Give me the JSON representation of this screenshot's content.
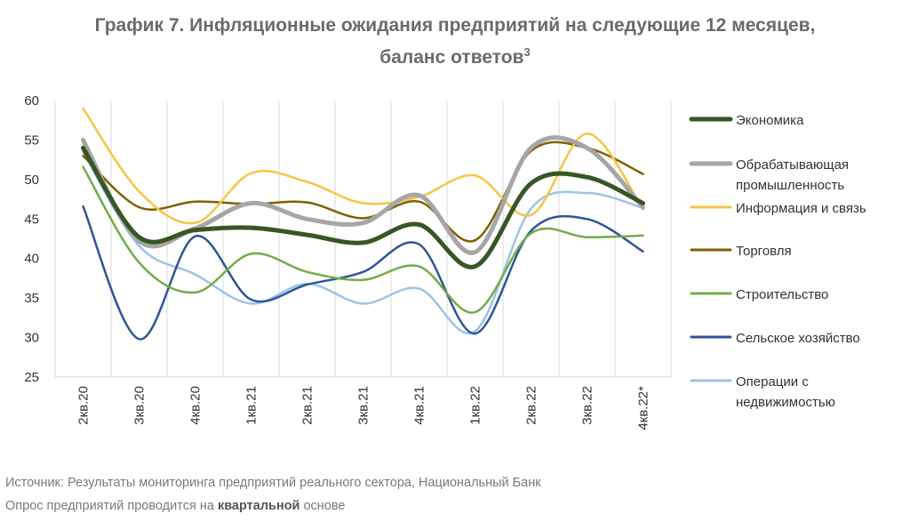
{
  "title": {
    "line1": "График 7.  Инфляционные ожидания предприятий на следующие 12 месяцев,",
    "line2": "баланс ответов",
    "footnote": "3"
  },
  "source": {
    "line1": "Источник: Результаты мониторинга предприятий реального сектора, Национальный Банк",
    "line2_prefix": "Опрос предприятий проводится на ",
    "line2_bold": "квартальной",
    "line2_suffix": " основе"
  },
  "chart_data": {
    "type": "line",
    "title": "График 7.  Инфляционные ожидания предприятий на следующие 12 месяцев, баланс ответов",
    "xlabel": "",
    "ylabel": "",
    "categories": [
      "2кв.20",
      "3кв.20",
      "4кв.20",
      "1кв.21",
      "2кв.21",
      "3кв.21",
      "4кв.21",
      "1кв.22",
      "2кв.22",
      "3кв.22",
      "4кв.22*"
    ],
    "ylim": [
      25,
      60
    ],
    "yticks": [
      25,
      30,
      35,
      40,
      45,
      50,
      55,
      60
    ],
    "grid": "vertical",
    "legend": "right",
    "series": [
      {
        "name": "Экономика",
        "legend_lines": [
          "Экономика"
        ],
        "color": "#375623",
        "width": 5,
        "values": [
          54,
          42.7,
          43.6,
          43.9,
          43.0,
          42.0,
          44.3,
          39.0,
          49.5,
          50.3,
          47.0
        ]
      },
      {
        "name": "Обрабатывающая промышленность",
        "legend_lines": [
          "Обрабатывающая",
          "промышленность"
        ],
        "color": "#a6a6a6",
        "width": 5,
        "values": [
          55,
          42.2,
          43.8,
          47.0,
          45.0,
          44.5,
          48.0,
          40.8,
          54.0,
          54.0,
          46.5
        ]
      },
      {
        "name": "Информация и связь",
        "legend_lines": [
          "Информация и связь"
        ],
        "color": "#f6c542",
        "width": 2.5,
        "values": [
          59,
          48.5,
          44.5,
          50.8,
          49.7,
          47.0,
          47.8,
          50.5,
          45.5,
          55.8,
          46.2
        ]
      },
      {
        "name": "Торговля",
        "legend_lines": [
          "Торговля"
        ],
        "color": "#7f6000",
        "width": 2.5,
        "values": [
          53,
          46.5,
          47.2,
          46.9,
          47.1,
          45.1,
          47.2,
          42.3,
          53.6,
          54.0,
          50.7
        ]
      },
      {
        "name": "Строительство",
        "legend_lines": [
          "Строительство"
        ],
        "color": "#70ad47",
        "width": 2.5,
        "values": [
          51.6,
          39.5,
          35.7,
          40.6,
          38.3,
          37.3,
          39.0,
          33.2,
          43.2,
          42.7,
          42.9
        ]
      },
      {
        "name": "Сельское хозяйство",
        "legend_lines": [
          "Сельское хозяйство"
        ],
        "color": "#2f5597",
        "width": 2.5,
        "values": [
          46.6,
          29.8,
          42.8,
          34.8,
          36.7,
          38.3,
          41.8,
          30.5,
          43.5,
          45.0,
          40.9
        ]
      },
      {
        "name": "Операции с недвижимостью",
        "legend_lines": [
          "Операции с",
          "недвижимостью"
        ],
        "color": "#9dc3e6",
        "width": 2.5,
        "values": [
          53.5,
          41.6,
          38.0,
          34.3,
          36.8,
          34.3,
          36.2,
          30.8,
          46.3,
          48.3,
          46.4
        ]
      }
    ]
  }
}
